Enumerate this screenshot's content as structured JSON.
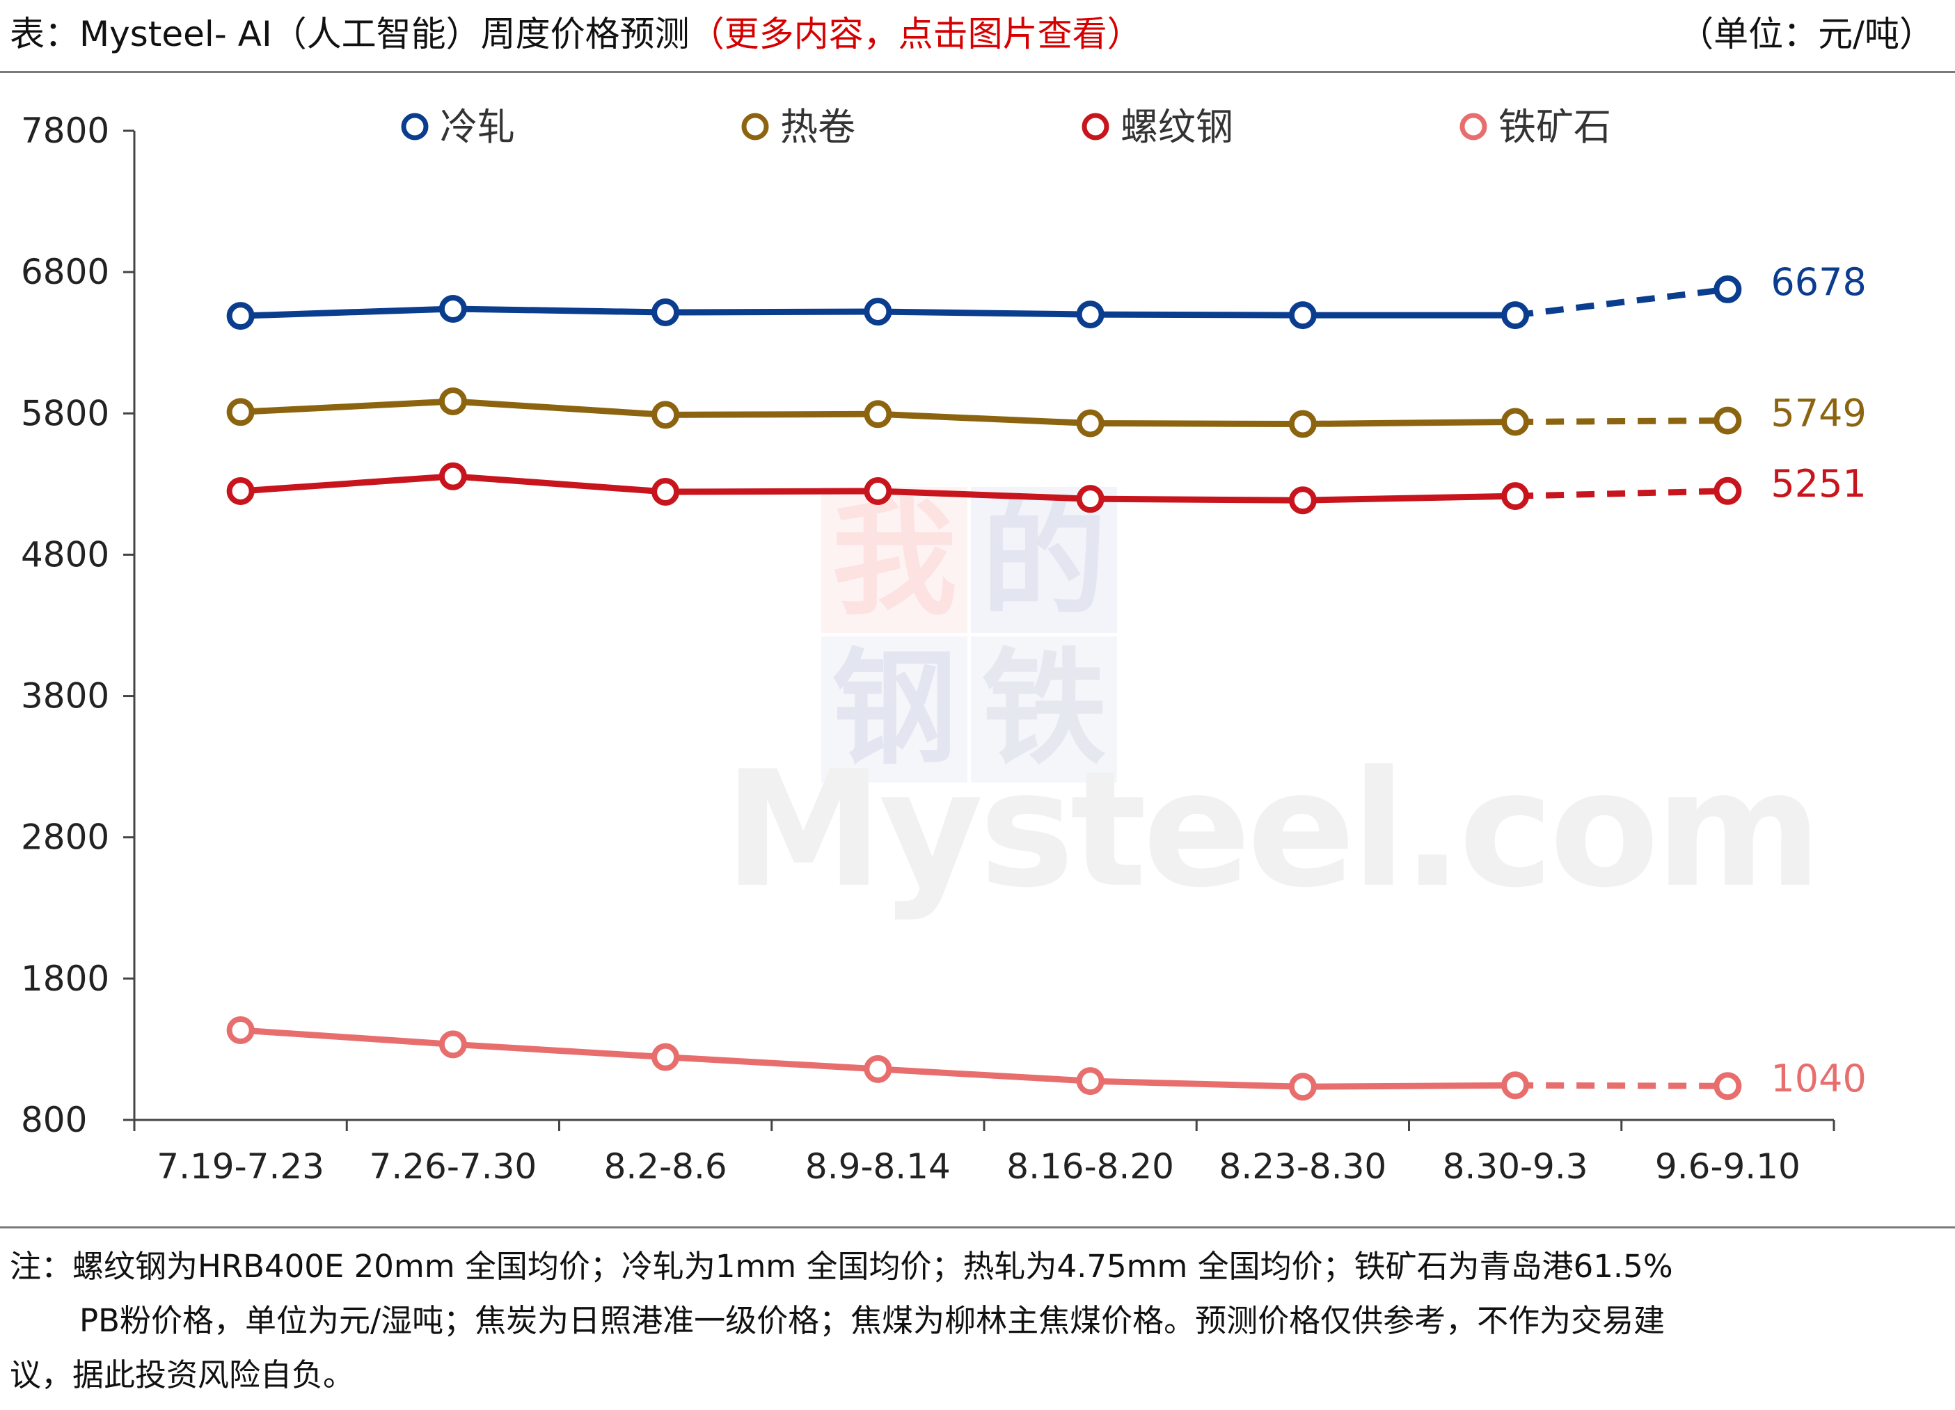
{
  "header": {
    "title": "表：Mysteel- AI（人工智能）周度价格预测",
    "title_note": "（更多内容，点击图片查看）",
    "unit": "（单位：元/吨）"
  },
  "watermark": {
    "chars": [
      "我",
      "的",
      "钢",
      "铁"
    ],
    "text": "Mysteel.com"
  },
  "footnote": {
    "line1": "注：螺纹钢为HRB400E 20mm 全国均价；冷轧为1mm 全国均价；热轧为4.75mm 全国均价；铁矿石为青岛港61.5%",
    "line2": "PB粉价格，单位为元/湿吨；焦炭为日照港准一级价格；焦煤为柳林主焦煤价格。预测价格仅供参考，不作为交易建",
    "line3": "议，据此投资风险自负。"
  },
  "chart_data": {
    "type": "line",
    "categories": [
      "7.19-7.23",
      "7.26-7.30",
      "8.2-8.6",
      "8.9-8.14",
      "8.16-8.20",
      "8.23-8.30",
      "8.30-9.3",
      "9.6-9.10"
    ],
    "ylim": [
      800,
      7800
    ],
    "yticks": [
      800,
      1800,
      2800,
      3800,
      4800,
      5800,
      6800,
      7800
    ],
    "grid": false,
    "legend_position": "top",
    "forecast_from_index": 6,
    "series": [
      {
        "name": "冷轧",
        "color": "#0b3d8f",
        "values": [
          6490,
          6540,
          6515,
          6520,
          6500,
          6495,
          6495,
          6678
        ],
        "end_label": "6678"
      },
      {
        "name": "热卷",
        "color": "#8c6410",
        "values": [
          5810,
          5885,
          5790,
          5795,
          5730,
          5725,
          5740,
          5749
        ],
        "end_label": "5749"
      },
      {
        "name": "螺纹钢",
        "color": "#c8141c",
        "values": [
          5250,
          5355,
          5245,
          5250,
          5195,
          5185,
          5215,
          5251
        ],
        "end_label": "5251"
      },
      {
        "name": "铁矿石",
        "color": "#e86e6e",
        "values": [
          1435,
          1335,
          1245,
          1160,
          1075,
          1035,
          1045,
          1040
        ],
        "end_label": "1040"
      }
    ]
  }
}
